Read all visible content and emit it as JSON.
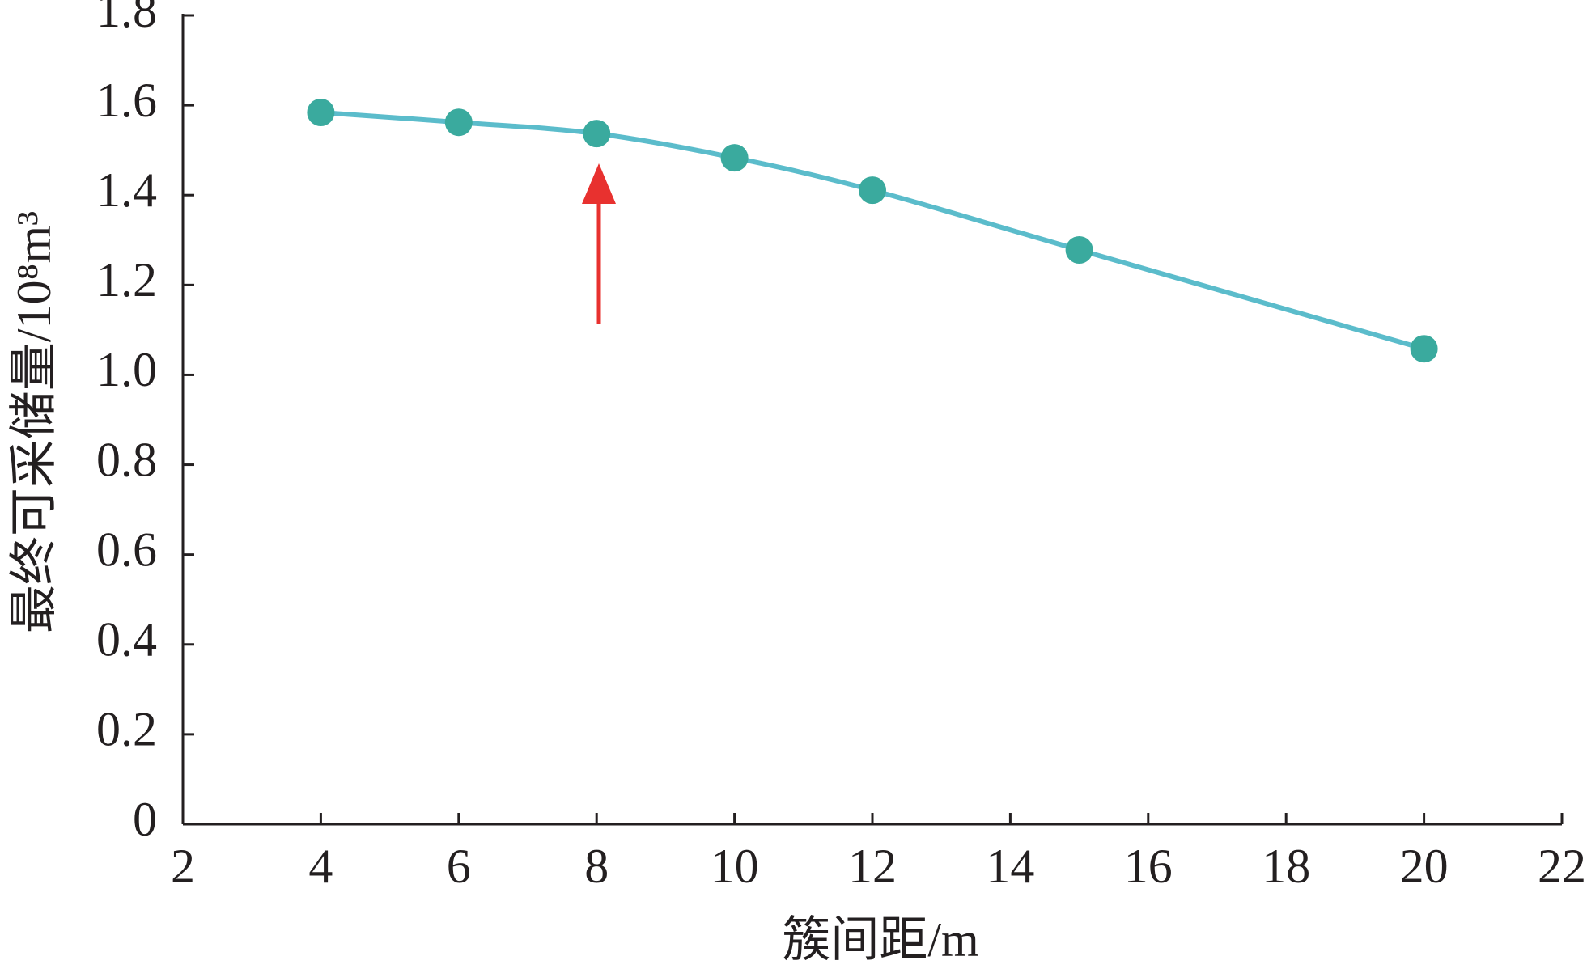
{
  "chart_data": {
    "type": "line",
    "x_label": "簇间距/m",
    "y_label": "最终可采储量/10⁸m³",
    "series": [
      {
        "x": [
          4,
          6,
          8,
          10,
          12,
          15,
          20
        ],
        "values": [
          1.584,
          1.562,
          1.537,
          1.483,
          1.411,
          1.278,
          1.058
        ],
        "color": "#5bbccb",
        "marker_color": "#3aaa9e"
      }
    ],
    "xlim": [
      2,
      22
    ],
    "xticks": [
      2,
      4,
      6,
      8,
      10,
      12,
      14,
      16,
      18,
      20,
      22
    ],
    "ylim": [
      0,
      1.8
    ],
    "yticks": [
      0,
      0.2,
      0.4,
      0.6,
      0.8,
      {
        "value": 1,
        "label": "1.0"
      },
      1.2,
      1.4,
      1.6,
      1.8
    ],
    "grid": false
  }
}
